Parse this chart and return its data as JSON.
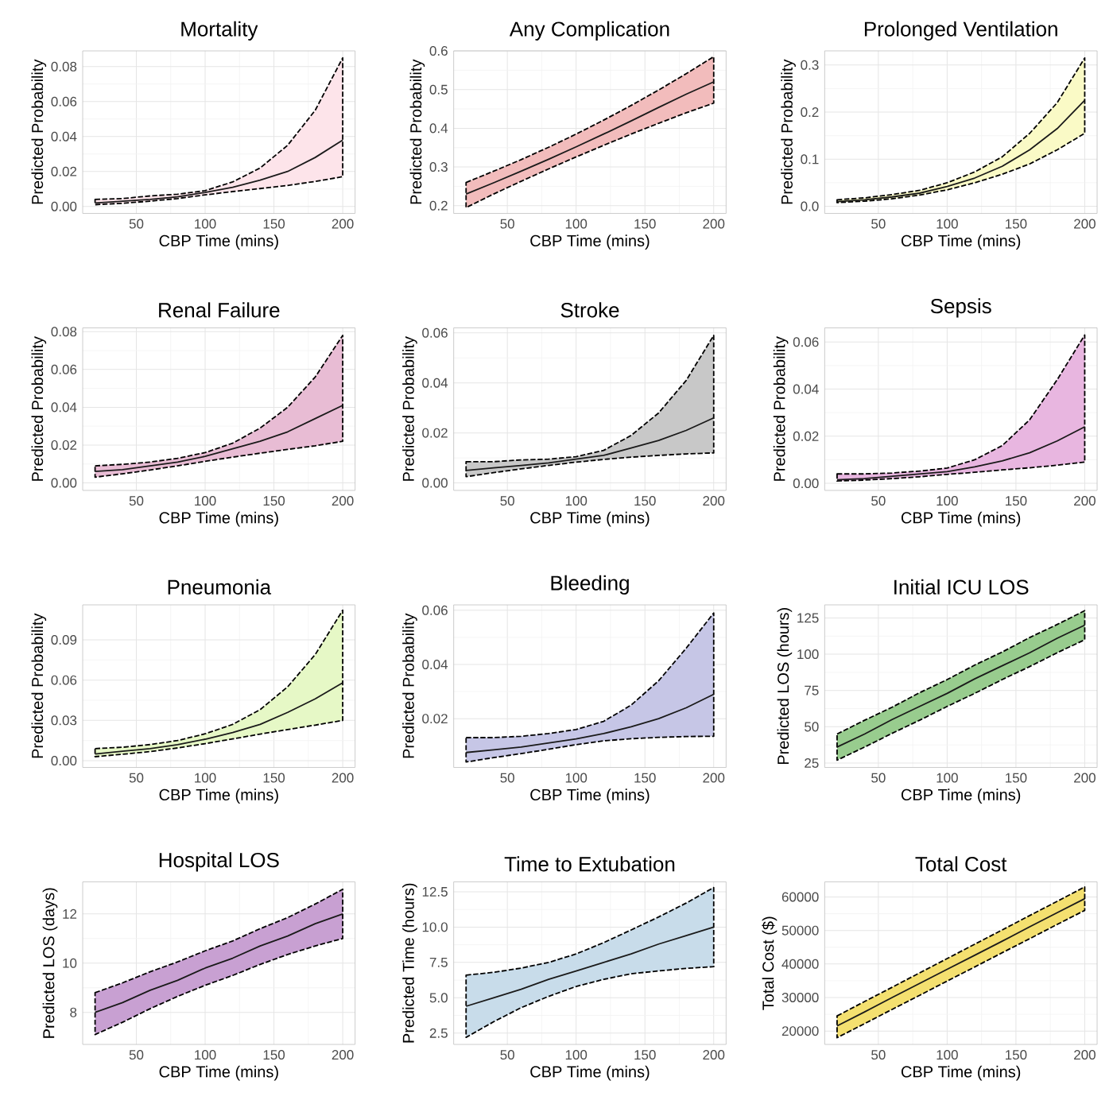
{
  "chart_data": [
    {
      "type": "line",
      "title": "Mortality",
      "xlabel": "CBP Time (mins)",
      "ylabel": "Predicted Probability",
      "color": "#fde4ea",
      "grid": true,
      "x": [
        20,
        40,
        60,
        80,
        100,
        120,
        140,
        160,
        180,
        200
      ],
      "xlim": [
        11,
        209
      ],
      "xticks": [
        50,
        100,
        150,
        200
      ],
      "ylim": [
        -0.004,
        0.089
      ],
      "yticks": [
        {
          "value": 0,
          "label": "0.00"
        },
        0.02,
        0.04,
        0.06,
        0.08
      ],
      "series": [
        {
          "color": "#1a1a1a",
          "values": [
            0.002,
            0.003,
            0.004,
            0.0055,
            0.008,
            0.011,
            0.015,
            0.02,
            0.028,
            0.038
          ],
          "lower": [
            0.001,
            0.0018,
            0.003,
            0.0045,
            0.0066,
            0.0085,
            0.0102,
            0.012,
            0.0143,
            0.017
          ],
          "upper": [
            0.004,
            0.0045,
            0.006,
            0.007,
            0.009,
            0.014,
            0.022,
            0.035,
            0.055,
            0.085
          ]
        }
      ]
    },
    {
      "type": "line",
      "title": "Any Complication",
      "xlabel": "CBP Time (mins)",
      "ylabel": "Predicted Probability",
      "color": "#f2bcbc",
      "grid": true,
      "x": [
        20,
        40,
        60,
        80,
        100,
        120,
        140,
        160,
        180,
        200
      ],
      "xlim": [
        11,
        209
      ],
      "xticks": [
        50,
        100,
        150,
        200
      ],
      "ylim": [
        0.18,
        0.6
      ],
      "yticks": [
        0.2,
        0.3,
        0.4,
        0.5,
        0.6
      ],
      "series": [
        {
          "color": "#1a1a1a",
          "values": [
            0.23,
            0.259,
            0.289,
            0.32,
            0.352,
            0.385,
            0.419,
            0.454,
            0.488,
            0.52
          ],
          "lower": [
            0.195,
            0.23,
            0.263,
            0.295,
            0.326,
            0.356,
            0.385,
            0.413,
            0.44,
            0.465
          ],
          "upper": [
            0.26,
            0.289,
            0.319,
            0.351,
            0.385,
            0.421,
            0.459,
            0.499,
            0.541,
            0.585
          ]
        }
      ]
    },
    {
      "type": "line",
      "title": "Prolonged Ventilation",
      "xlabel": "CBP Time (mins)",
      "ylabel": "Predicted Probability",
      "color": "#fafac6",
      "grid": true,
      "x": [
        20,
        40,
        60,
        80,
        100,
        120,
        140,
        160,
        180,
        200
      ],
      "xlim": [
        11,
        209
      ],
      "xticks": [
        50,
        100,
        150,
        200
      ],
      "ylim": [
        -0.015,
        0.33
      ],
      "yticks": [
        {
          "value": 0,
          "label": "0.0"
        },
        0.1,
        0.2,
        0.3
      ],
      "series": [
        {
          "color": "#1a1a1a",
          "values": [
            0.01,
            0.014,
            0.02,
            0.028,
            0.042,
            0.06,
            0.085,
            0.12,
            0.165,
            0.225
          ],
          "lower": [
            0.008,
            0.011,
            0.016,
            0.024,
            0.035,
            0.05,
            0.068,
            0.09,
            0.12,
            0.155
          ],
          "upper": [
            0.014,
            0.018,
            0.025,
            0.034,
            0.05,
            0.073,
            0.105,
            0.155,
            0.22,
            0.315
          ]
        }
      ]
    },
    {
      "type": "line",
      "title": "Renal Failure",
      "xlabel": "CBP Time (mins)",
      "ylabel": "Predicted Probability",
      "color": "#e8bcd4",
      "grid": true,
      "x": [
        20,
        40,
        60,
        80,
        100,
        120,
        140,
        160,
        180,
        200
      ],
      "xlim": [
        11,
        209
      ],
      "xticks": [
        50,
        100,
        150,
        200
      ],
      "ylim": [
        -0.004,
        0.082
      ],
      "yticks": [
        {
          "value": 0,
          "label": "0.00"
        },
        0.02,
        0.04,
        0.06,
        0.08
      ],
      "series": [
        {
          "color": "#1a1a1a",
          "values": [
            0.006,
            0.007,
            0.009,
            0.011,
            0.014,
            0.018,
            0.022,
            0.027,
            0.034,
            0.041
          ],
          "lower": [
            0.003,
            0.0048,
            0.0068,
            0.009,
            0.0114,
            0.0136,
            0.0157,
            0.0177,
            0.0196,
            0.022
          ],
          "upper": [
            0.009,
            0.0098,
            0.011,
            0.013,
            0.016,
            0.021,
            0.029,
            0.04,
            0.056,
            0.078
          ]
        }
      ]
    },
    {
      "type": "line",
      "title": "Stroke",
      "xlabel": "CBP Time (mins)",
      "ylabel": "Predicted Probability",
      "color": "#c8c8c8",
      "grid": true,
      "x": [
        20,
        40,
        60,
        80,
        100,
        120,
        140,
        160,
        180,
        200
      ],
      "xlim": [
        11,
        209
      ],
      "xticks": [
        50,
        100,
        150,
        200
      ],
      "ylim": [
        -0.003,
        0.062
      ],
      "yticks": [
        {
          "value": 0,
          "label": "0.00"
        },
        0.02,
        0.04,
        0.06
      ],
      "series": [
        {
          "color": "#1a1a1a",
          "values": [
            0.005,
            0.006,
            0.007,
            0.008,
            0.0095,
            0.011,
            0.014,
            0.017,
            0.021,
            0.026
          ],
          "lower": [
            0.0025,
            0.0041,
            0.0056,
            0.007,
            0.0083,
            0.0094,
            0.0103,
            0.011,
            0.0116,
            0.012
          ],
          "upper": [
            0.0085,
            0.0085,
            0.0092,
            0.0095,
            0.0105,
            0.013,
            0.019,
            0.028,
            0.041,
            0.059
          ]
        }
      ]
    },
    {
      "type": "line",
      "title": "Sepsis",
      "xlabel": "CBP Time (mins)",
      "ylabel": "Predicted Probability",
      "color": "#e8b6e0",
      "grid": true,
      "x": [
        20,
        40,
        60,
        80,
        100,
        120,
        140,
        160,
        180,
        200
      ],
      "xlim": [
        11,
        209
      ],
      "xticks": [
        50,
        100,
        150,
        200
      ],
      "ylim": [
        -0.003,
        0.066
      ],
      "yticks": [
        {
          "value": 0,
          "label": "0.00"
        },
        0.02,
        0.04,
        0.06
      ],
      "series": [
        {
          "color": "#1a1a1a",
          "values": [
            0.0015,
            0.002,
            0.003,
            0.004,
            0.005,
            0.007,
            0.0095,
            0.013,
            0.018,
            0.024
          ],
          "lower": [
            0.001,
            0.0014,
            0.002,
            0.0028,
            0.0038,
            0.0047,
            0.0057,
            0.0066,
            0.0077,
            0.009
          ],
          "upper": [
            0.004,
            0.004,
            0.0044,
            0.0052,
            0.0065,
            0.01,
            0.016,
            0.027,
            0.044,
            0.063
          ]
        }
      ]
    },
    {
      "type": "line",
      "title": "Pneumonia",
      "xlabel": "CBP Time (mins)",
      "ylabel": "Predicted Probability",
      "color": "#e6f8c6",
      "grid": true,
      "x": [
        20,
        40,
        60,
        80,
        100,
        120,
        140,
        160,
        180,
        200
      ],
      "xlim": [
        11,
        209
      ],
      "xticks": [
        50,
        100,
        150,
        200
      ],
      "ylim": [
        -0.005,
        0.116
      ],
      "yticks": [
        {
          "value": 0,
          "label": "0.00"
        },
        0.03,
        0.06,
        0.09
      ],
      "series": [
        {
          "color": "#1a1a1a",
          "values": [
            0.005,
            0.007,
            0.009,
            0.012,
            0.016,
            0.021,
            0.027,
            0.036,
            0.046,
            0.058
          ],
          "lower": [
            0.003,
            0.0048,
            0.0068,
            0.0095,
            0.0127,
            0.0162,
            0.0198,
            0.0232,
            0.0265,
            0.03
          ],
          "upper": [
            0.009,
            0.01,
            0.012,
            0.015,
            0.02,
            0.027,
            0.038,
            0.055,
            0.079,
            0.112
          ]
        }
      ]
    },
    {
      "type": "line",
      "title": "Bleeding",
      "xlabel": "CBP Time (mins)",
      "ylabel": "Predicted Probability",
      "color": "#c6c6e6",
      "grid": true,
      "x": [
        20,
        40,
        60,
        80,
        100,
        120,
        140,
        160,
        180,
        200
      ],
      "xlim": [
        11,
        209
      ],
      "xticks": [
        50,
        100,
        150,
        200
      ],
      "ylim": [
        0.002,
        0.062
      ],
      "yticks": [
        0.02,
        0.04,
        0.06
      ],
      "series": [
        {
          "color": "#1a1a1a",
          "values": [
            0.0075,
            0.0085,
            0.0095,
            0.011,
            0.0125,
            0.0145,
            0.017,
            0.02,
            0.024,
            0.029
          ],
          "lower": [
            0.004,
            0.0056,
            0.0071,
            0.0087,
            0.0104,
            0.0118,
            0.0126,
            0.0131,
            0.0134,
            0.0135
          ],
          "upper": [
            0.013,
            0.013,
            0.0135,
            0.0145,
            0.016,
            0.019,
            0.025,
            0.034,
            0.046,
            0.059
          ]
        }
      ]
    },
    {
      "type": "line",
      "title": "Initial ICU LOS",
      "xlabel": "CBP Time (mins)",
      "ylabel": "Predicted LOS (hours)",
      "color": "#98cc8e",
      "grid": true,
      "x": [
        20,
        40,
        60,
        80,
        100,
        120,
        140,
        160,
        180,
        200
      ],
      "xlim": [
        11,
        209
      ],
      "xticks": [
        50,
        100,
        150,
        200
      ],
      "ylim": [
        22,
        134
      ],
      "yticks": [
        25,
        50,
        75,
        100,
        125
      ],
      "series": [
        {
          "color": "#1a1a1a",
          "values": [
            36,
            45,
            55,
            64,
            73,
            83,
            92,
            101,
            111,
            120
          ],
          "lower": [
            27,
            36,
            45.5,
            54.5,
            64,
            73,
            82.5,
            91.5,
            101,
            110
          ],
          "upper": [
            45,
            54.5,
            63.5,
            73.5,
            82.5,
            92.5,
            101.5,
            111.5,
            120.5,
            130
          ]
        }
      ]
    },
    {
      "type": "line",
      "title": "Hospital LOS",
      "xlabel": "CBP Time (mins)",
      "ylabel": "Predicted LOS (days)",
      "color": "#c8a0d2",
      "grid": true,
      "x": [
        20,
        40,
        60,
        80,
        100,
        120,
        140,
        160,
        180,
        200
      ],
      "xlim": [
        11,
        209
      ],
      "xticks": [
        50,
        100,
        150,
        200
      ],
      "ylim": [
        6.7,
        13.3
      ],
      "yticks": [
        8,
        10,
        12
      ],
      "series": [
        {
          "color": "#1a1a1a",
          "values": [
            8.0,
            8.4,
            8.9,
            9.3,
            9.8,
            10.2,
            10.7,
            11.1,
            11.6,
            12.0
          ],
          "lower": [
            7.1,
            7.6,
            8.15,
            8.65,
            9.1,
            9.5,
            9.95,
            10.35,
            10.7,
            11.0
          ],
          "upper": [
            8.8,
            9.2,
            9.65,
            10.05,
            10.5,
            10.9,
            11.4,
            11.85,
            12.4,
            13.0
          ]
        }
      ]
    },
    {
      "type": "line",
      "title": "Time to Extubation",
      "xlabel": "CBP Time (mins)",
      "ylabel": "Predicted Time (hours)",
      "color": "#c8dcea",
      "grid": true,
      "x": [
        20,
        40,
        60,
        80,
        100,
        120,
        140,
        160,
        180,
        200
      ],
      "xlim": [
        11,
        209
      ],
      "xticks": [
        50,
        100,
        150,
        200
      ],
      "ylim": [
        1.7,
        13.2
      ],
      "yticks": [
        2.5,
        {
          "value": 5,
          "label": "5.0"
        },
        7.5,
        {
          "value": 10,
          "label": "10.0"
        },
        12.5
      ],
      "series": [
        {
          "color": "#1a1a1a",
          "values": [
            4.4,
            5.0,
            5.6,
            6.3,
            6.9,
            7.5,
            8.1,
            8.8,
            9.4,
            10.0
          ],
          "lower": [
            2.2,
            3.3,
            4.3,
            5.1,
            5.8,
            6.3,
            6.7,
            6.9,
            7.08,
            7.2
          ],
          "upper": [
            6.6,
            6.8,
            7.1,
            7.5,
            8.1,
            8.9,
            9.8,
            10.72,
            11.7,
            12.8
          ]
        }
      ]
    },
    {
      "type": "line",
      "title": "Total Cost",
      "xlabel": "CBP Time (mins)",
      "ylabel": "Total Cost ($)",
      "color": "#f4e070",
      "grid": true,
      "x": [
        20,
        40,
        60,
        80,
        100,
        120,
        140,
        160,
        180,
        200
      ],
      "xlim": [
        11,
        209
      ],
      "xticks": [
        50,
        100,
        150,
        200
      ],
      "ylim": [
        16000,
        64500
      ],
      "yticks": [
        20000,
        30000,
        40000,
        50000,
        60000
      ],
      "series": [
        {
          "color": "#1a1a1a",
          "values": [
            21500,
            25700,
            30000,
            34200,
            38400,
            42600,
            46800,
            51100,
            55300,
            59500
          ],
          "lower": [
            18000,
            22200,
            26450,
            30650,
            34900,
            39100,
            43350,
            47550,
            51800,
            56000
          ],
          "upper": [
            24500,
            28800,
            33050,
            37350,
            41600,
            45900,
            50150,
            54450,
            58700,
            63000
          ]
        }
      ]
    }
  ]
}
